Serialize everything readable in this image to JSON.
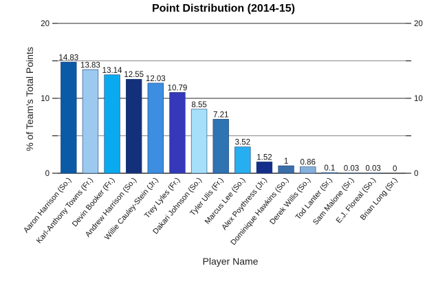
{
  "chart_data": {
    "type": "bar",
    "title": "Point Distribution (2014-15)",
    "xlabel": "Player Name",
    "ylabel": "% of Team's Total Points",
    "ylim": [
      0,
      20
    ],
    "yticks": [
      0,
      10,
      20
    ],
    "grid": true,
    "secondary_y_axis": true,
    "categories": [
      "Aaron Harrison (So.)",
      "Karl-Anthony Towns (Fr.)",
      "Devin Booker (Fr.)",
      "Andrew Harrison (So.)",
      "Willie Cauley-Stein (Jr.)",
      "Trey Lyles (Fr.)",
      "Dakari Johnson (So.)",
      "Tyler Ulis (Fr.)",
      "Marcus Lee (So.)",
      "Alex Poythress (Jr.)",
      "Dominique Hawkins (So.)",
      "Derek Willis (So.)",
      "Tod Lanter (Sr.)",
      "Sam Malone (Sr.)",
      "E.J. Floreal (So.)",
      "Brian Long (Sr.)"
    ],
    "values": [
      14.83,
      13.83,
      13.14,
      12.55,
      12.03,
      10.79,
      8.55,
      7.21,
      3.52,
      1.52,
      1,
      0.86,
      0.1,
      0.03,
      0.03,
      0
    ],
    "value_labels": [
      "14.83",
      "13.83",
      "13.14",
      "12.55",
      "12.03",
      "10.79",
      "8.55",
      "7.21",
      "3.52",
      "1.52",
      "1",
      "0.86",
      "0.1",
      "0.03",
      "0.03",
      "0"
    ],
    "colors": [
      "#0a5aa8",
      "#9cc9f0",
      "#0aaaf0",
      "#15307a",
      "#3d8ee0",
      "#3538b8",
      "#a5e0f8",
      "#2e73b2",
      "#26aef0",
      "#142e8c",
      "#3a6ea8",
      "#86b0dc",
      "#90c8f0",
      "#2a8ad8",
      "#1a3cb0",
      "#1a4aa8"
    ]
  }
}
